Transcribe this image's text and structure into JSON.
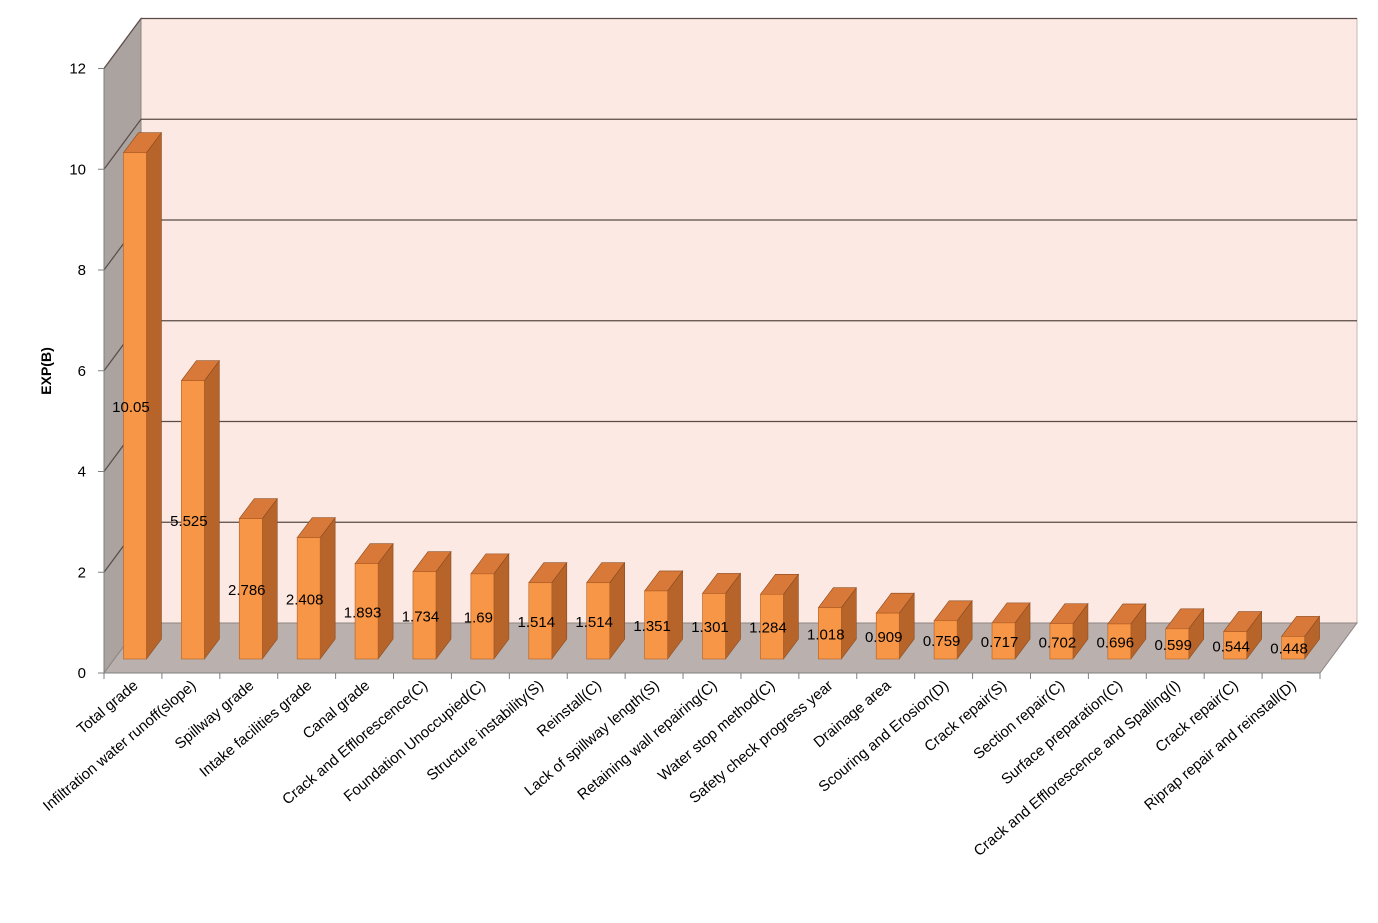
{
  "chart_data": {
    "type": "bar",
    "style": "3d-column",
    "title": "",
    "xlabel": "",
    "ylabel": "EXP(B)",
    "ylim": [
      0,
      12
    ],
    "yticks": [
      0,
      2,
      4,
      6,
      8,
      10,
      12
    ],
    "grid": true,
    "legend": "none",
    "categories": [
      "Total grade",
      "Infiltration water runoff(slope)",
      "Spillway grade",
      "Intake facilities grade",
      "Canal grade",
      "Crack and Efflorescence(C)",
      "Foundation Unoccupied(C)",
      "Structure instability(S)",
      "Reinstall(C)",
      "Lack of spillway length(S)",
      "Retaining wall repairing(C)",
      "Water stop method(C)",
      "Safety check progress year",
      "Drainage area",
      "Scouring and Erosion(D)",
      "Crack repair(S)",
      "Section repair(C)",
      "Surface preparation(C)",
      "Crack and Efflorescence and Spalling(I)",
      "Crack repair(C)",
      "Riprap repair and reinstall(D)"
    ],
    "values": [
      10.05,
      5.525,
      2.786,
      2.408,
      1.893,
      1.734,
      1.69,
      1.514,
      1.514,
      1.351,
      1.301,
      1.284,
      1.018,
      0.909,
      0.759,
      0.717,
      0.702,
      0.696,
      0.599,
      0.544,
      0.448
    ],
    "data_labels": [
      "10.05",
      "5.525",
      "2.786",
      "2.408",
      "1.893",
      "1.734",
      "1.69",
      "1.514",
      "1.514",
      "1.351",
      "1.301",
      "1.284",
      "1.018",
      "0.909",
      "0.759",
      "0.717",
      "0.702",
      "0.696",
      "0.599",
      "0.544",
      "0.448"
    ],
    "colors": {
      "bar_front": "#F79646",
      "bar_side": "#B6642A",
      "bar_top": "#D8793A",
      "back_wall": "#FDE9E3",
      "side_wall": "#ABA3A0",
      "floor": "#BAB0AD",
      "gridline": "#5A4B47"
    }
  }
}
